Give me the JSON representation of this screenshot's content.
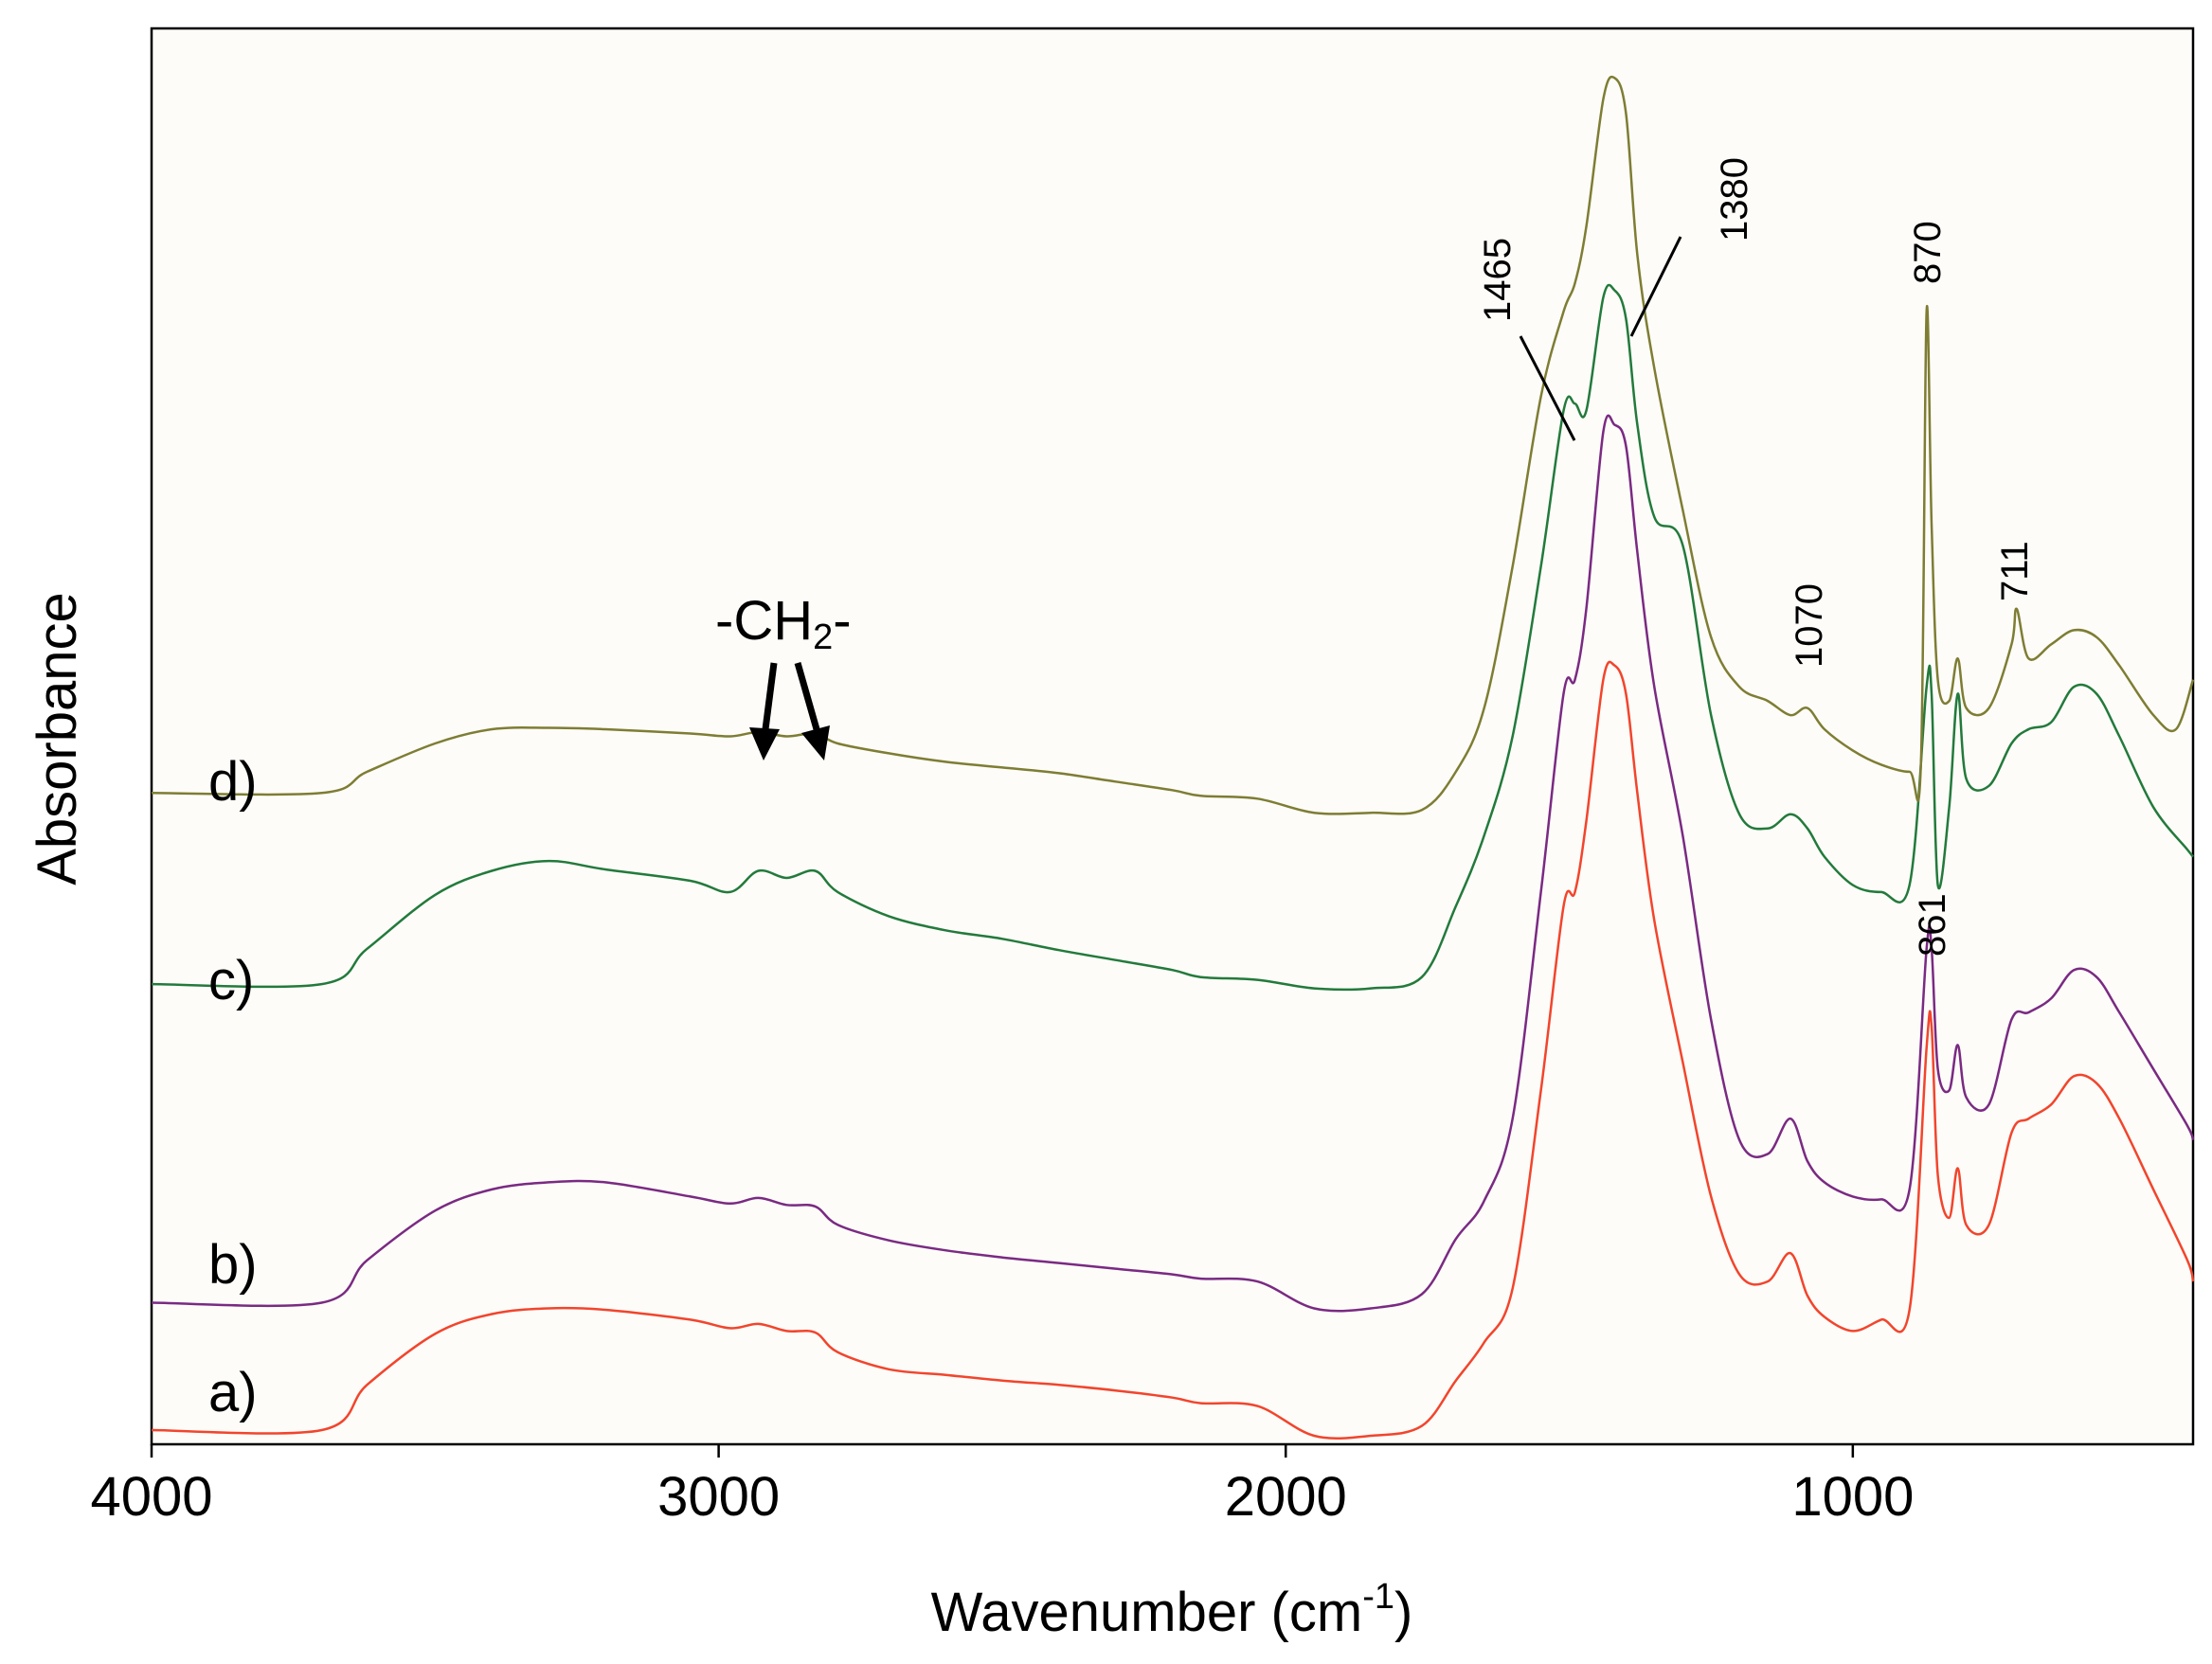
{
  "chart_data": {
    "type": "line",
    "title": "",
    "xlabel_main": "Wavenumber (cm",
    "xlabel_sup": "-1",
    "xlabel_close": ")",
    "ylabel": "Absorbance",
    "xlim": [
      4000,
      400
    ],
    "x_reversed": true,
    "ylim": [
      0,
      10
    ],
    "y_ticks_shown": false,
    "x_ticks": [
      4000,
      3000,
      2000,
      1000
    ],
    "x_tick_labels": [
      "4000",
      "3000",
      "2000",
      "1000"
    ],
    "series": [
      {
        "name": "a)",
        "color": "#f2452c",
        "points": [
          [
            4000,
            0.1
          ],
          [
            3700,
            0.1
          ],
          [
            3620,
            0.42
          ],
          [
            3500,
            0.78
          ],
          [
            3400,
            0.92
          ],
          [
            3300,
            0.96
          ],
          [
            3200,
            0.95
          ],
          [
            3050,
            0.88
          ],
          [
            2980,
            0.82
          ],
          [
            2930,
            0.85
          ],
          [
            2880,
            0.8
          ],
          [
            2830,
            0.79
          ],
          [
            2790,
            0.65
          ],
          [
            2700,
            0.53
          ],
          [
            2600,
            0.49
          ],
          [
            2500,
            0.45
          ],
          [
            2400,
            0.42
          ],
          [
            2300,
            0.38
          ],
          [
            2200,
            0.33
          ],
          [
            2150,
            0.29
          ],
          [
            2050,
            0.27
          ],
          [
            1950,
            0.06
          ],
          [
            1850,
            0.06
          ],
          [
            1760,
            0.13
          ],
          [
            1700,
            0.45
          ],
          [
            1650,
            0.72
          ],
          [
            1600,
            1.1
          ],
          [
            1550,
            2.5
          ],
          [
            1510,
            3.8
          ],
          [
            1490,
            3.9
          ],
          [
            1470,
            4.4
          ],
          [
            1440,
            5.4
          ],
          [
            1420,
            5.5
          ],
          [
            1400,
            5.3
          ],
          [
            1380,
            4.6
          ],
          [
            1350,
            3.7
          ],
          [
            1300,
            2.7
          ],
          [
            1250,
            1.75
          ],
          [
            1200,
            1.2
          ],
          [
            1150,
            1.15
          ],
          [
            1110,
            1.35
          ],
          [
            1080,
            1.05
          ],
          [
            1050,
            0.9
          ],
          [
            1000,
            0.8
          ],
          [
            950,
            0.88
          ],
          [
            900,
            0.95
          ],
          [
            870,
            2.8
          ],
          [
            861,
            2.95
          ],
          [
            850,
            1.9
          ],
          [
            830,
            1.6
          ],
          [
            815,
            1.95
          ],
          [
            800,
            1.55
          ],
          [
            760,
            1.55
          ],
          [
            720,
            2.2
          ],
          [
            690,
            2.3
          ],
          [
            650,
            2.4
          ],
          [
            610,
            2.6
          ],
          [
            570,
            2.55
          ],
          [
            530,
            2.3
          ],
          [
            470,
            1.8
          ],
          [
            410,
            1.3
          ],
          [
            400,
            1.15
          ]
        ]
      },
      {
        "name": "b)",
        "color": "#7a2a82",
        "points": [
          [
            4000,
            1.0
          ],
          [
            3700,
            1.0
          ],
          [
            3620,
            1.3
          ],
          [
            3500,
            1.65
          ],
          [
            3400,
            1.8
          ],
          [
            3300,
            1.85
          ],
          [
            3200,
            1.85
          ],
          [
            3050,
            1.75
          ],
          [
            2980,
            1.7
          ],
          [
            2930,
            1.74
          ],
          [
            2880,
            1.69
          ],
          [
            2830,
            1.68
          ],
          [
            2790,
            1.55
          ],
          [
            2700,
            1.44
          ],
          [
            2600,
            1.37
          ],
          [
            2500,
            1.32
          ],
          [
            2400,
            1.28
          ],
          [
            2300,
            1.24
          ],
          [
            2200,
            1.2
          ],
          [
            2150,
            1.17
          ],
          [
            2050,
            1.15
          ],
          [
            1950,
            0.96
          ],
          [
            1850,
            0.96
          ],
          [
            1760,
            1.06
          ],
          [
            1700,
            1.45
          ],
          [
            1650,
            1.72
          ],
          [
            1600,
            2.3
          ],
          [
            1550,
            3.9
          ],
          [
            1510,
            5.3
          ],
          [
            1490,
            5.4
          ],
          [
            1470,
            5.9
          ],
          [
            1440,
            7.15
          ],
          [
            1420,
            7.2
          ],
          [
            1400,
            7.05
          ],
          [
            1380,
            6.3
          ],
          [
            1350,
            5.35
          ],
          [
            1300,
            4.3
          ],
          [
            1250,
            3.0
          ],
          [
            1200,
            2.15
          ],
          [
            1150,
            2.05
          ],
          [
            1110,
            2.3
          ],
          [
            1080,
            2.0
          ],
          [
            1050,
            1.85
          ],
          [
            1000,
            1.75
          ],
          [
            950,
            1.73
          ],
          [
            900,
            1.8
          ],
          [
            870,
            3.5
          ],
          [
            861,
            3.5
          ],
          [
            850,
            2.65
          ],
          [
            830,
            2.5
          ],
          [
            815,
            2.82
          ],
          [
            800,
            2.45
          ],
          [
            760,
            2.4
          ],
          [
            720,
            3.0
          ],
          [
            690,
            3.05
          ],
          [
            650,
            3.15
          ],
          [
            610,
            3.35
          ],
          [
            570,
            3.3
          ],
          [
            530,
            3.05
          ],
          [
            470,
            2.65
          ],
          [
            410,
            2.25
          ],
          [
            400,
            2.15
          ]
        ]
      },
      {
        "name": "c)",
        "color": "#237a3b",
        "points": [
          [
            4000,
            3.25
          ],
          [
            3700,
            3.25
          ],
          [
            3620,
            3.5
          ],
          [
            3500,
            3.88
          ],
          [
            3400,
            4.05
          ],
          [
            3300,
            4.12
          ],
          [
            3200,
            4.06
          ],
          [
            3050,
            3.98
          ],
          [
            2980,
            3.9
          ],
          [
            2930,
            4.05
          ],
          [
            2880,
            4.0
          ],
          [
            2830,
            4.05
          ],
          [
            2790,
            3.9
          ],
          [
            2700,
            3.73
          ],
          [
            2600,
            3.63
          ],
          [
            2500,
            3.57
          ],
          [
            2400,
            3.49
          ],
          [
            2300,
            3.42
          ],
          [
            2200,
            3.35
          ],
          [
            2150,
            3.3
          ],
          [
            2050,
            3.28
          ],
          [
            1950,
            3.22
          ],
          [
            1850,
            3.22
          ],
          [
            1760,
            3.3
          ],
          [
            1700,
            3.8
          ],
          [
            1650,
            4.3
          ],
          [
            1600,
            5.0
          ],
          [
            1550,
            6.2
          ],
          [
            1510,
            7.3
          ],
          [
            1490,
            7.35
          ],
          [
            1470,
            7.3
          ],
          [
            1440,
            8.1
          ],
          [
            1420,
            8.15
          ],
          [
            1400,
            7.95
          ],
          [
            1380,
            7.2
          ],
          [
            1350,
            6.55
          ],
          [
            1300,
            6.35
          ],
          [
            1250,
            5.15
          ],
          [
            1200,
            4.45
          ],
          [
            1150,
            4.35
          ],
          [
            1110,
            4.45
          ],
          [
            1080,
            4.35
          ],
          [
            1050,
            4.15
          ],
          [
            1000,
            3.95
          ],
          [
            950,
            3.9
          ],
          [
            900,
            3.95
          ],
          [
            870,
            5.35
          ],
          [
            861,
            5.3
          ],
          [
            850,
            3.95
          ],
          [
            830,
            4.5
          ],
          [
            815,
            5.3
          ],
          [
            800,
            4.7
          ],
          [
            760,
            4.65
          ],
          [
            720,
            4.95
          ],
          [
            690,
            5.05
          ],
          [
            650,
            5.1
          ],
          [
            610,
            5.35
          ],
          [
            570,
            5.3
          ],
          [
            530,
            5.0
          ],
          [
            470,
            4.5
          ],
          [
            410,
            4.2
          ],
          [
            400,
            4.15
          ]
        ]
      },
      {
        "name": "d)",
        "color": "#7e7d33",
        "points": [
          [
            4000,
            4.6
          ],
          [
            3700,
            4.6
          ],
          [
            3620,
            4.75
          ],
          [
            3500,
            4.95
          ],
          [
            3400,
            5.05
          ],
          [
            3300,
            5.06
          ],
          [
            3200,
            5.05
          ],
          [
            3050,
            5.02
          ],
          [
            2980,
            5.0
          ],
          [
            2930,
            5.03
          ],
          [
            2880,
            5.0
          ],
          [
            2830,
            5.02
          ],
          [
            2790,
            4.95
          ],
          [
            2700,
            4.88
          ],
          [
            2600,
            4.82
          ],
          [
            2500,
            4.78
          ],
          [
            2400,
            4.74
          ],
          [
            2300,
            4.68
          ],
          [
            2200,
            4.62
          ],
          [
            2150,
            4.58
          ],
          [
            2050,
            4.56
          ],
          [
            1950,
            4.46
          ],
          [
            1850,
            4.46
          ],
          [
            1760,
            4.48
          ],
          [
            1700,
            4.75
          ],
          [
            1650,
            5.2
          ],
          [
            1600,
            6.2
          ],
          [
            1550,
            7.4
          ],
          [
            1510,
            8.0
          ],
          [
            1490,
            8.2
          ],
          [
            1470,
            8.6
          ],
          [
            1440,
            9.5
          ],
          [
            1420,
            9.65
          ],
          [
            1400,
            9.4
          ],
          [
            1380,
            8.4
          ],
          [
            1350,
            7.6
          ],
          [
            1300,
            6.6
          ],
          [
            1250,
            5.7
          ],
          [
            1200,
            5.35
          ],
          [
            1150,
            5.25
          ],
          [
            1110,
            5.15
          ],
          [
            1080,
            5.2
          ],
          [
            1050,
            5.05
          ],
          [
            1000,
            4.9
          ],
          [
            950,
            4.8
          ],
          [
            900,
            4.75
          ],
          [
            880,
            4.8
          ],
          [
            870,
            8.0
          ],
          [
            861,
            6.5
          ],
          [
            850,
            5.4
          ],
          [
            830,
            5.25
          ],
          [
            815,
            5.55
          ],
          [
            800,
            5.2
          ],
          [
            760,
            5.2
          ],
          [
            720,
            5.65
          ],
          [
            711,
            5.9
          ],
          [
            690,
            5.55
          ],
          [
            650,
            5.65
          ],
          [
            610,
            5.75
          ],
          [
            570,
            5.7
          ],
          [
            530,
            5.5
          ],
          [
            470,
            5.15
          ],
          [
            430,
            5.05
          ],
          [
            400,
            5.4
          ]
        ]
      }
    ],
    "peak_annotations": [
      {
        "label": "1465"
      },
      {
        "label": "1380"
      },
      {
        "label": "870"
      },
      {
        "label": "1070"
      },
      {
        "label": "711"
      },
      {
        "label": "861"
      }
    ],
    "group_annotation": {
      "main": "-CH",
      "sub": "2",
      "tail": "-"
    }
  }
}
